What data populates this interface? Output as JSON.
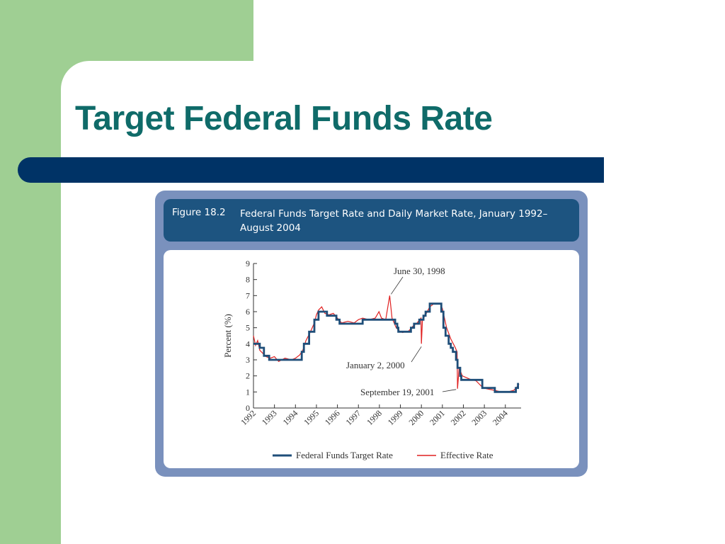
{
  "slide": {
    "title": "Target Federal Funds Rate"
  },
  "figure": {
    "label": "Figure 18.2",
    "caption": "Federal Funds Target Rate and Daily Market Rate, January 1992–August 2004"
  },
  "colors": {
    "accent_green": "#9fcf93",
    "title_teal": "#0f6b69",
    "bar_navy": "#003366",
    "target_series": "#1f4e79",
    "effective_series": "#e02020"
  },
  "chart_data": {
    "type": "line",
    "ylabel": "Percent (%)",
    "ylim": [
      0,
      9
    ],
    "yticks": [
      "0",
      "1",
      "2",
      "3",
      "4",
      "5",
      "6",
      "7",
      "8",
      "9"
    ],
    "xlim": [
      1992,
      2004.75
    ],
    "xticks": [
      "1992",
      "1993",
      "1994",
      "1995",
      "1996",
      "1997",
      "1998",
      "1999",
      "2000",
      "2001",
      "2002",
      "2003",
      "2004"
    ],
    "grid": false,
    "legend_placement": "bottom",
    "series": [
      {
        "name": "Federal Funds Target Rate",
        "x": [
          1992.0,
          1992.3,
          1992.5,
          1992.75,
          1994.1,
          1994.3,
          1994.4,
          1994.65,
          1994.9,
          1995.1,
          1995.5,
          1995.95,
          1996.1,
          1997.2,
          1998.75,
          1998.85,
          1998.9,
          1999.5,
          1999.65,
          1999.9,
          2000.1,
          2000.2,
          2000.4,
          2000.95,
          2001.05,
          2001.15,
          2001.3,
          2001.4,
          2001.5,
          2001.65,
          2001.72,
          2001.85,
          2001.9,
          2001.95,
          2002.9,
          2003.5,
          2004.5,
          2004.6,
          2004.65
        ],
        "y": [
          4.0,
          3.75,
          3.25,
          3.0,
          3.0,
          3.5,
          4.0,
          4.75,
          5.5,
          6.0,
          5.75,
          5.5,
          5.25,
          5.5,
          5.25,
          5.0,
          4.75,
          5.0,
          5.25,
          5.5,
          5.75,
          6.0,
          6.5,
          6.0,
          5.0,
          4.5,
          4.0,
          3.75,
          3.5,
          3.0,
          2.5,
          2.0,
          1.75,
          1.75,
          1.25,
          1.0,
          1.25,
          1.5,
          1.5
        ]
      },
      {
        "name": "Effective Rate",
        "x": [
          1992.0,
          1992.1,
          1992.2,
          1992.3,
          1992.45,
          1992.6,
          1992.8,
          1993.0,
          1993.2,
          1993.5,
          1993.8,
          1994.0,
          1994.2,
          1994.35,
          1994.5,
          1994.7,
          1994.9,
          1995.0,
          1995.1,
          1995.25,
          1995.4,
          1995.6,
          1995.8,
          1996.0,
          1996.2,
          1996.5,
          1996.8,
          1997.0,
          1997.2,
          1997.5,
          1997.8,
          1997.98,
          1998.1,
          1998.3,
          1998.49,
          1998.6,
          1998.8,
          1998.95,
          1999.1,
          1999.4,
          1999.6,
          1999.8,
          1999.98,
          2000.0,
          2000.05,
          2000.2,
          2000.4,
          2000.6,
          2000.9,
          2001.0,
          2001.2,
          2001.4,
          2001.6,
          2001.7,
          2001.72,
          2001.8,
          2001.95,
          2002.3,
          2002.6,
          2002.9,
          2003.1,
          2003.5,
          2003.8,
          2004.1,
          2004.4,
          2004.55,
          2004.65
        ],
        "y": [
          4.5,
          3.9,
          4.2,
          3.6,
          3.4,
          3.2,
          3.1,
          3.2,
          2.9,
          3.1,
          3.0,
          3.1,
          3.3,
          3.6,
          4.2,
          4.7,
          5.3,
          5.8,
          6.1,
          6.3,
          5.9,
          5.8,
          5.9,
          5.6,
          5.3,
          5.4,
          5.3,
          5.5,
          5.6,
          5.5,
          5.6,
          6.0,
          5.6,
          5.5,
          7.0,
          5.6,
          5.0,
          4.8,
          4.7,
          4.8,
          5.1,
          5.3,
          5.6,
          4.0,
          5.5,
          5.8,
          6.3,
          6.5,
          6.5,
          6.2,
          5.0,
          4.3,
          3.8,
          3.5,
          1.2,
          2.5,
          2.0,
          1.8,
          1.7,
          1.3,
          1.2,
          1.1,
          1.0,
          1.0,
          1.1,
          1.3,
          1.5
        ]
      }
    ],
    "annotations": [
      {
        "text": "June 30, 1998",
        "x": 1998.49,
        "y": 7.0
      },
      {
        "text": "January 2, 2000",
        "x": 2000.0,
        "y": 4.0
      },
      {
        "text": "September 19, 2001",
        "x": 2001.72,
        "y": 1.2
      }
    ]
  }
}
